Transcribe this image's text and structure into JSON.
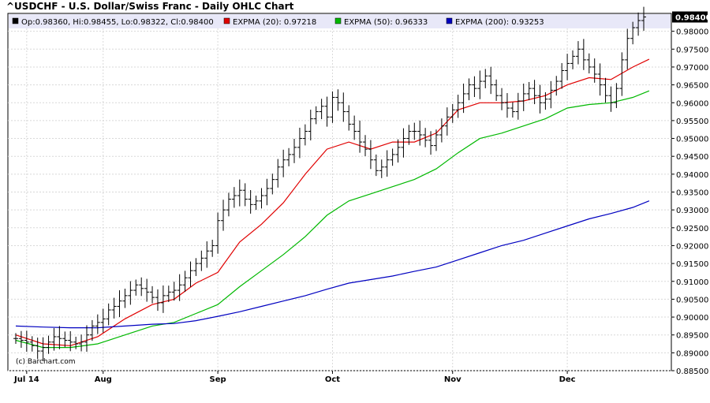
{
  "header": {
    "title": "^USDCHF - U.S. Dollar/Swiss Franc - Daily OHLC Chart"
  },
  "chart_data": {
    "type": "ohlc",
    "title": "^USDCHF - U.S. Dollar/Swiss Franc - Daily OHLC Chart",
    "legend": [
      {
        "label": "Op:0.98360, Hi:0.98455, Lo:0.98322, Cl:0.98400",
        "color": "#000000"
      },
      {
        "label": "EXPMA (20): 0.97218",
        "color": "#e00000"
      },
      {
        "label": "EXPMA (50): 0.96333",
        "color": "#00b800"
      },
      {
        "label": "EXPMA (200): 0.93253",
        "color": "#0000c0"
      }
    ],
    "legend_position": "top",
    "last_price_label": "0.98400",
    "ylim": [
      0.885,
      0.985
    ],
    "yticks": [
      "0.88500",
      "0.89000",
      "0.89500",
      "0.90000",
      "0.90500",
      "0.91000",
      "0.91500",
      "0.92000",
      "0.92500",
      "0.93000",
      "0.93500",
      "0.94000",
      "0.94500",
      "0.95000",
      "0.95500",
      "0.96000",
      "0.96500",
      "0.97000",
      "0.97500",
      "0.98000"
    ],
    "xticks": [
      {
        "label": "Jul 14",
        "index": 2
      },
      {
        "label": "Aug",
        "index": 16
      },
      {
        "label": "Sep",
        "index": 37
      },
      {
        "label": "Oct",
        "index": 58
      },
      {
        "label": "Nov",
        "index": 80
      },
      {
        "label": "Dec",
        "index": 101
      }
    ],
    "grid": true,
    "credit": "(c) Barchart.com",
    "series": [
      {
        "name": "Price",
        "kind": "ohlc",
        "color": "#000000",
        "close": [
          0.894,
          0.8935,
          0.893,
          0.892,
          0.8905,
          0.8915,
          0.893,
          0.8945,
          0.894,
          0.8935,
          0.893,
          0.8925,
          0.893,
          0.895,
          0.8975,
          0.8985,
          0.8995,
          0.902,
          0.903,
          0.9045,
          0.906,
          0.9075,
          0.909,
          0.908,
          0.907,
          0.9055,
          0.904,
          0.906,
          0.907,
          0.9075,
          0.909,
          0.911,
          0.913,
          0.915,
          0.9165,
          0.9185,
          0.92,
          0.927,
          0.93,
          0.933,
          0.934,
          0.9355,
          0.933,
          0.9315,
          0.9325,
          0.934,
          0.936,
          0.9385,
          0.942,
          0.944,
          0.9455,
          0.9475,
          0.95,
          0.952,
          0.9555,
          0.9575,
          0.959,
          0.956,
          0.9615,
          0.96,
          0.9575,
          0.954,
          0.952,
          0.949,
          0.947,
          0.944,
          0.941,
          0.942,
          0.944,
          0.9455,
          0.9475,
          0.95,
          0.952,
          0.952,
          0.951,
          0.9495,
          0.948,
          0.951,
          0.9535,
          0.956,
          0.958,
          0.96,
          0.9625,
          0.965,
          0.964,
          0.966,
          0.9675,
          0.965,
          0.962,
          0.96,
          0.9585,
          0.9575,
          0.9605,
          0.9625,
          0.964,
          0.962,
          0.96,
          0.961,
          0.9635,
          0.966,
          0.969,
          0.971,
          0.973,
          0.975,
          0.972,
          0.97,
          0.968,
          0.965,
          0.962,
          0.96,
          0.964,
          0.972,
          0.978,
          0.981,
          0.983,
          0.984
        ]
      },
      {
        "name": "EXPMA (20)",
        "kind": "line",
        "color": "#e00000",
        "points": [
          [
            0,
            0.895
          ],
          [
            5,
            0.8925
          ],
          [
            10,
            0.892
          ],
          [
            15,
            0.8945
          ],
          [
            20,
            0.8995
          ],
          [
            25,
            0.9035
          ],
          [
            29,
            0.905
          ],
          [
            33,
            0.9095
          ],
          [
            37,
            0.9125
          ],
          [
            41,
            0.921
          ],
          [
            45,
            0.926
          ],
          [
            49,
            0.932
          ],
          [
            53,
            0.94
          ],
          [
            57,
            0.947
          ],
          [
            61,
            0.949
          ],
          [
            65,
            0.947
          ],
          [
            69,
            0.949
          ],
          [
            73,
            0.949
          ],
          [
            77,
            0.9515
          ],
          [
            81,
            0.958
          ],
          [
            85,
            0.96
          ],
          [
            89,
            0.96
          ],
          [
            93,
            0.9605
          ],
          [
            97,
            0.962
          ],
          [
            101,
            0.965
          ],
          [
            105,
            0.967
          ],
          [
            109,
            0.9665
          ],
          [
            113,
            0.97
          ],
          [
            116,
            0.97218
          ]
        ]
      },
      {
        "name": "EXPMA (50)",
        "kind": "line",
        "color": "#00b800",
        "points": [
          [
            0,
            0.8935
          ],
          [
            5,
            0.8915
          ],
          [
            10,
            0.8915
          ],
          [
            15,
            0.8925
          ],
          [
            20,
            0.895
          ],
          [
            25,
            0.8975
          ],
          [
            29,
            0.8985
          ],
          [
            33,
            0.901
          ],
          [
            37,
            0.9035
          ],
          [
            41,
            0.9085
          ],
          [
            45,
            0.913
          ],
          [
            49,
            0.9175
          ],
          [
            53,
            0.9225
          ],
          [
            57,
            0.9285
          ],
          [
            61,
            0.9325
          ],
          [
            65,
            0.9345
          ],
          [
            69,
            0.9365
          ],
          [
            73,
            0.9385
          ],
          [
            77,
            0.9415
          ],
          [
            81,
            0.946
          ],
          [
            85,
            0.95
          ],
          [
            89,
            0.9515
          ],
          [
            93,
            0.9535
          ],
          [
            97,
            0.9555
          ],
          [
            101,
            0.9585
          ],
          [
            105,
            0.9595
          ],
          [
            109,
            0.96
          ],
          [
            113,
            0.9615
          ],
          [
            116,
            0.96333
          ]
        ]
      },
      {
        "name": "EXPMA (200)",
        "kind": "line",
        "color": "#0000c0",
        "points": [
          [
            0,
            0.8975
          ],
          [
            5,
            0.8972
          ],
          [
            10,
            0.897
          ],
          [
            15,
            0.897
          ],
          [
            20,
            0.8975
          ],
          [
            25,
            0.898
          ],
          [
            29,
            0.8982
          ],
          [
            33,
            0.899
          ],
          [
            37,
            0.9002
          ],
          [
            41,
            0.9015
          ],
          [
            45,
            0.903
          ],
          [
            49,
            0.9045
          ],
          [
            53,
            0.906
          ],
          [
            57,
            0.9078
          ],
          [
            61,
            0.9095
          ],
          [
            65,
            0.9105
          ],
          [
            69,
            0.9115
          ],
          [
            73,
            0.9128
          ],
          [
            77,
            0.914
          ],
          [
            81,
            0.916
          ],
          [
            85,
            0.918
          ],
          [
            89,
            0.92
          ],
          [
            93,
            0.9215
          ],
          [
            97,
            0.9235
          ],
          [
            101,
            0.9255
          ],
          [
            105,
            0.9275
          ],
          [
            109,
            0.929
          ],
          [
            113,
            0.9307
          ],
          [
            116,
            0.93253
          ]
        ]
      }
    ]
  }
}
